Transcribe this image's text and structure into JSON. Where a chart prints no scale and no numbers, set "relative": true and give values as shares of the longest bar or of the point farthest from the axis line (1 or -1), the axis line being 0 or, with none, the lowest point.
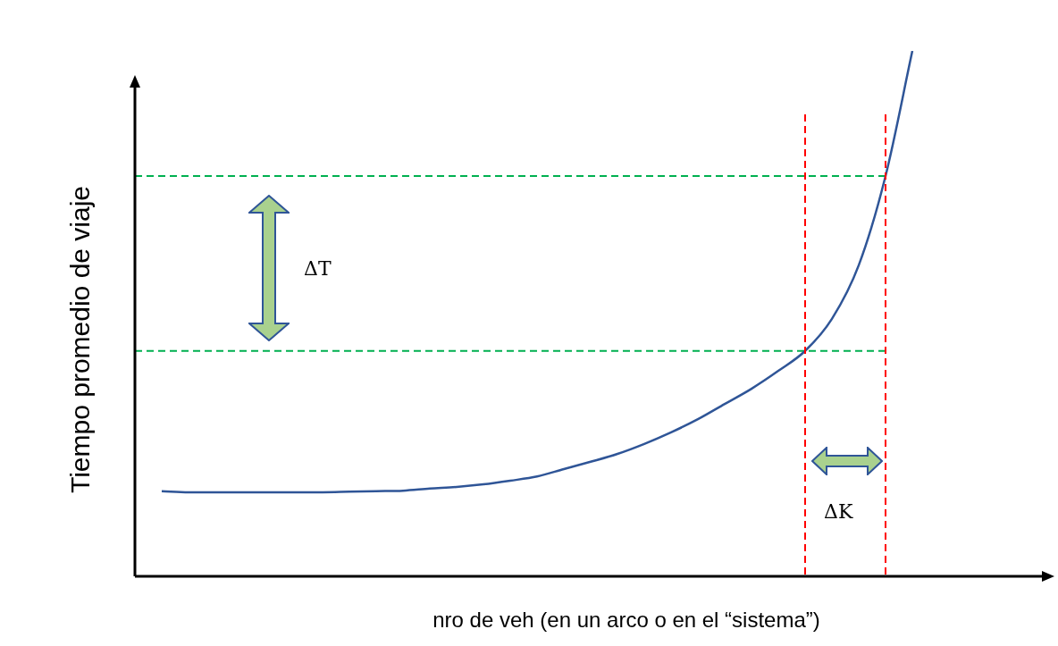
{
  "chart_data": {
    "type": "line",
    "relative": true,
    "xlabel": "nro de veh (en un arco o en el “sistema”)",
    "ylabel": "Tiempo promedio de viaje",
    "categories": [
      null,
      null,
      null,
      null,
      null,
      null,
      null,
      null,
      null,
      null,
      null,
      null,
      null,
      null,
      null,
      null,
      null,
      null,
      null,
      null,
      null,
      null,
      null,
      null,
      null,
      null,
      null,
      null,
      null,
      null,
      null,
      null,
      null,
      null,
      null
    ],
    "series": [
      {
        "color": "#2f5597",
        "values": [
          null,
          0.162,
          0.16,
          0.16,
          0.16,
          0.16,
          0.16,
          0.16,
          0.161,
          0.162,
          0.163,
          0.167,
          0.17,
          0.175,
          0.182,
          0.19,
          0.204,
          0.218,
          0.233,
          0.252,
          0.274,
          0.299,
          0.328,
          0.357,
          0.391,
          0.429,
          0.49,
          0.592,
          0.762,
          1,
          null,
          null,
          null,
          null,
          null
        ]
      }
    ],
    "ref_lines": [
      {
        "axis": "y",
        "value": 0.762,
        "color": "#00b050",
        "line_style": "dashed"
      },
      {
        "axis": "y",
        "value": 0.429,
        "color": "#00b050",
        "line_style": "dashed"
      }
    ],
    "annotations": [
      "ΔT",
      "ΔK"
    ],
    "legend": false,
    "marker": "none",
    "line_style": "solid"
  }
}
